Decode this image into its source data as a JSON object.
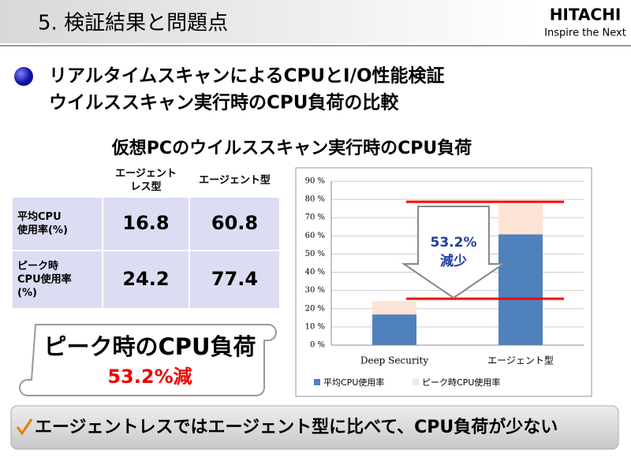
{
  "header": {
    "title": "5. 検証結果と問題点",
    "logo": "HITACHI",
    "tagline": "Inspire the Next"
  },
  "bullet": [
    "リアルタイムスキャンによるCPUとI/O性能検証",
    "ウイルススキャン実行時のCPU負荷の比較"
  ],
  "subtitle": "仮想PCのウイルススキャン実行時のCPU負荷",
  "table": {
    "columns": [
      [
        "エージェント",
        "レス型"
      ],
      [
        "エージェント型"
      ]
    ],
    "rows": [
      {
        "label": [
          "平均CPU",
          "使用率(%)"
        ],
        "values": [
          16.8,
          60.8
        ]
      },
      {
        "label": [
          "ピーク時",
          "CPU使用率",
          "(%)"
        ],
        "values": [
          24.2,
          77.4
        ]
      }
    ]
  },
  "callout": {
    "title": "ピーク時のCPU負荷",
    "text": "53.2%減"
  },
  "conclusion": "エージェントレスではエージェント型に比べて、CPU負荷が少ない",
  "chart_data": {
    "type": "overlap-bar",
    "categories": [
      "Deep Security",
      "エージェント型"
    ],
    "series": [
      {
        "name": "ピーク時CPU使用率",
        "color": "#fde3d3",
        "values": [
          24.2,
          77.4
        ]
      },
      {
        "name": "平均CPU使用率",
        "color": "#4f81bd",
        "values": [
          16.8,
          60.8
        ]
      }
    ],
    "ylim": [
      0,
      90
    ],
    "yticks": [
      {
        "value": 0,
        "label": "0 %"
      },
      {
        "value": 10,
        "label": "10 %"
      },
      {
        "value": 20,
        "label": "20 %"
      },
      {
        "value": 30,
        "label": "30 %"
      },
      {
        "value": 40,
        "label": "40 %"
      },
      {
        "value": 50,
        "label": "50 %"
      },
      {
        "value": 60,
        "label": "60 %"
      },
      {
        "value": 70,
        "label": "70 %"
      },
      {
        "value": 80,
        "label": "80 %"
      },
      {
        "value": 90,
        "label": "90 %"
      }
    ],
    "grid": true,
    "annotations": [
      "53.2%",
      "減少"
    ]
  }
}
